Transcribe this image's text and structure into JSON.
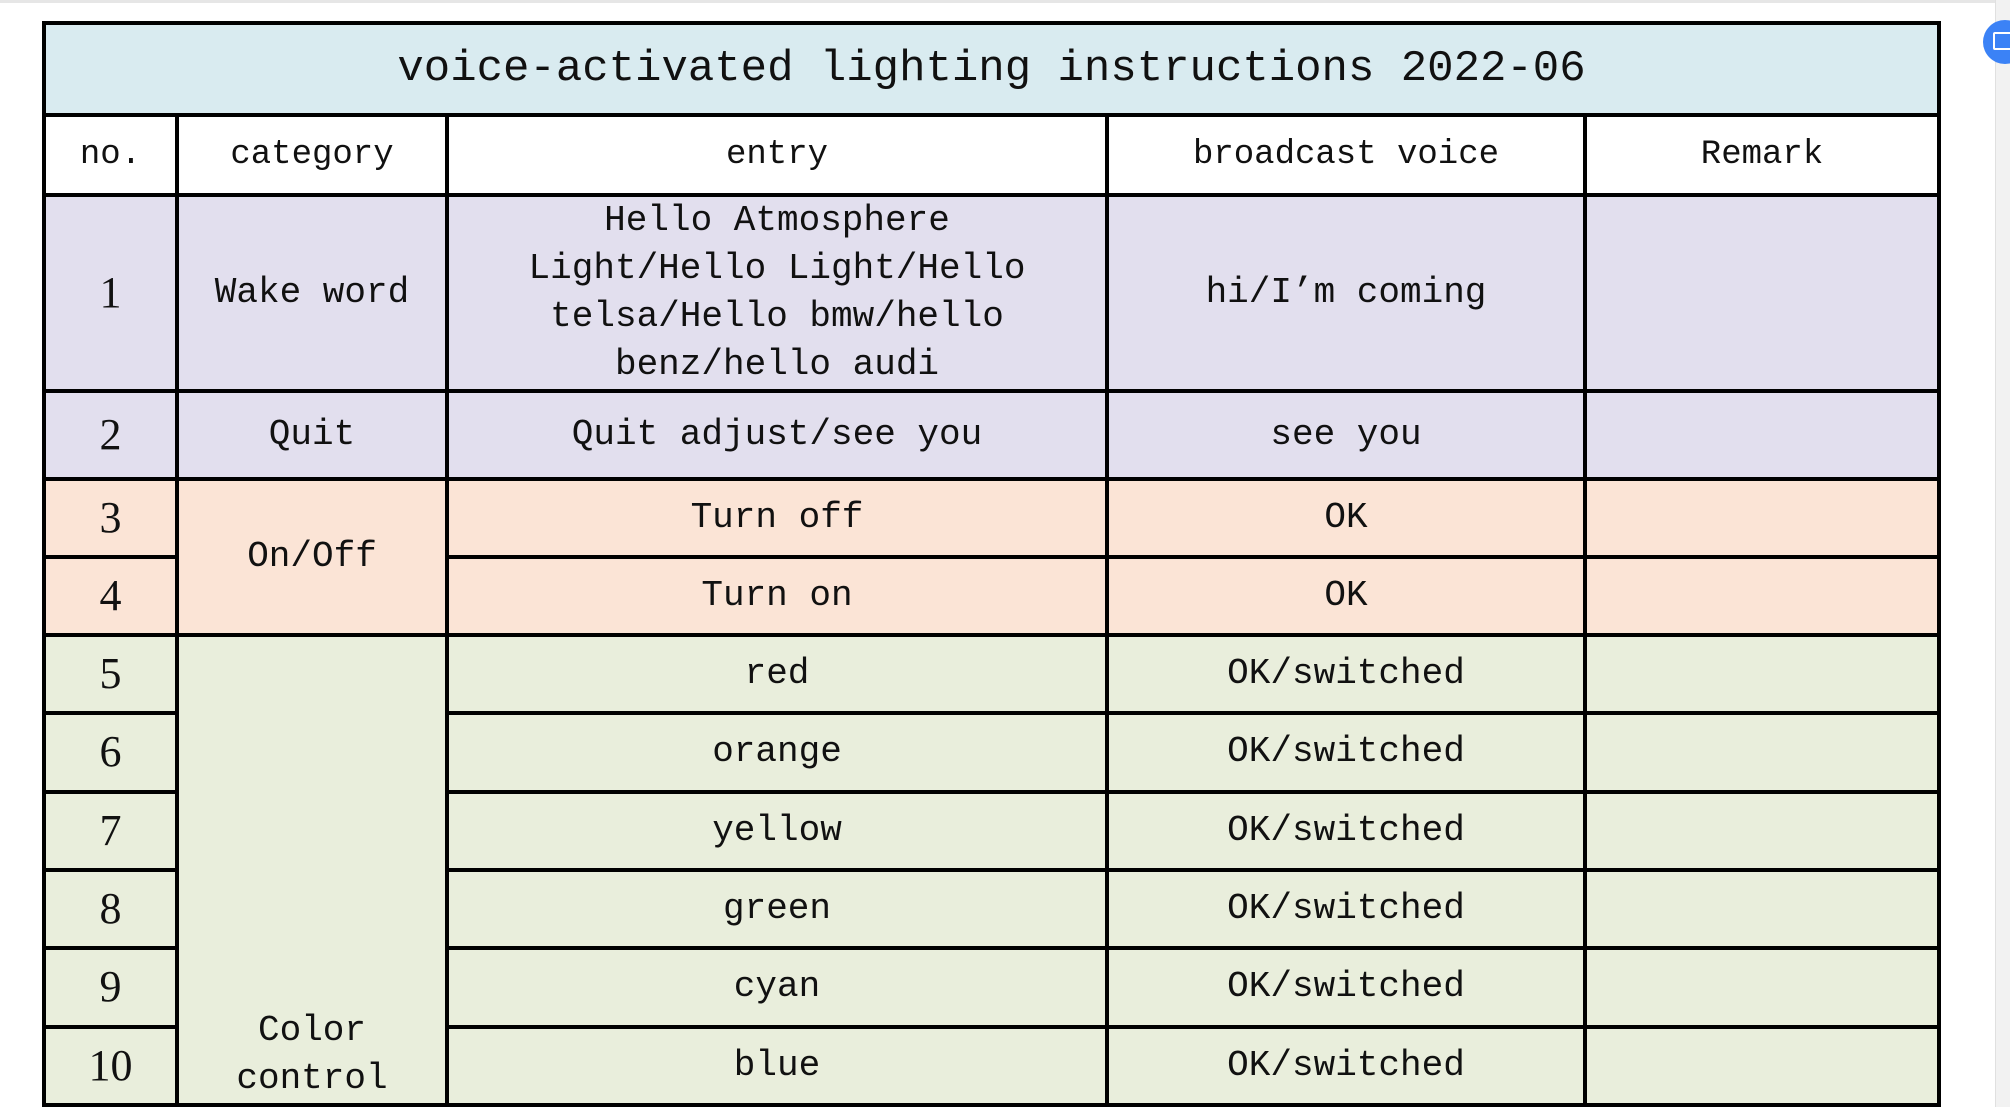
{
  "title": "voice-activated lighting instructions  2022-06",
  "headers": [
    "no.",
    "category",
    "entry",
    "broadcast voice",
    "Remark"
  ],
  "rows": [
    {
      "no": "1",
      "category": "Wake word",
      "entry": "Hello Atmosphere Light/Hello Light/Hello telsa/Hello bmw/hello benz/hello audi",
      "voice": "hi/I’m coming",
      "remark": ""
    },
    {
      "no": "2",
      "category": "Quit",
      "entry": "Quit adjust/see you",
      "voice": "see you",
      "remark": ""
    },
    {
      "no": "3",
      "category": "On/Off",
      "entry": "Turn off",
      "voice": "OK",
      "remark": ""
    },
    {
      "no": "4",
      "entry": "Turn on",
      "voice": "OK",
      "remark": ""
    },
    {
      "no": "5",
      "category": "Color control",
      "entry": "red",
      "voice": "OK/switched",
      "remark": ""
    },
    {
      "no": "6",
      "entry": "orange",
      "voice": "OK/switched",
      "remark": ""
    },
    {
      "no": "7",
      "entry": "yellow",
      "voice": "OK/switched",
      "remark": ""
    },
    {
      "no": "8",
      "entry": "green",
      "voice": "OK/switched",
      "remark": ""
    },
    {
      "no": "9",
      "entry": "cyan",
      "voice": "OK/switched",
      "remark": ""
    },
    {
      "no": "10",
      "entry": "blue",
      "voice": "OK/switched",
      "remark": ""
    }
  ],
  "colors": {
    "title_bg": "#d9ebf0",
    "purple": "#e2dfee",
    "orange": "#fbe4d6",
    "green": "#e9eedc"
  },
  "fab_icon": "screen-capture-icon"
}
